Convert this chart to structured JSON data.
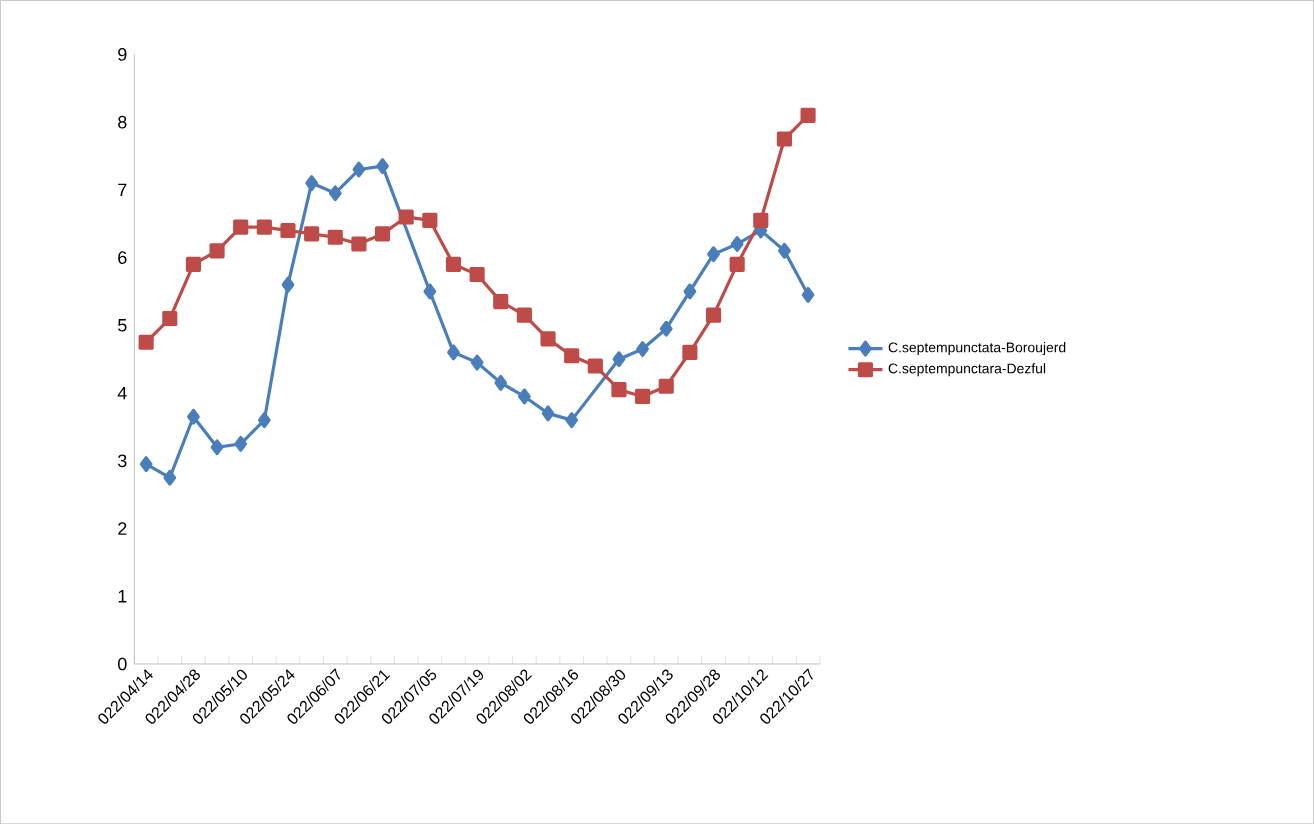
{
  "chart_data": {
    "type": "line",
    "categories": [
      "022/04/14",
      null,
      "022/04/28",
      null,
      "022/05/10",
      null,
      "022/05/24",
      null,
      "022/06/07",
      null,
      "022/06/21",
      null,
      "022/07/05",
      null,
      "022/07/19",
      null,
      "022/08/02",
      null,
      "022/08/16",
      null,
      "022/08/30",
      null,
      "022/09/13",
      null,
      "022/09/28",
      null,
      "022/10/12",
      null,
      "022/10/27"
    ],
    "series": [
      {
        "name": "C.septempunctata-Boroujerd",
        "color": "#4a7ebb",
        "marker": "diamond",
        "values": [
          2.95,
          2.75,
          3.65,
          3.2,
          3.25,
          3.6,
          5.6,
          7.1,
          6.95,
          7.3,
          7.35,
          null,
          5.5,
          4.6,
          4.45,
          4.15,
          3.95,
          3.7,
          3.6,
          null,
          4.5,
          4.65,
          4.95,
          5.5,
          6.05,
          6.2,
          6.4,
          6.1,
          5.45
        ]
      },
      {
        "name": "C.septempunctara-Dezful",
        "color": "#be4b48",
        "marker": "square",
        "values": [
          4.75,
          5.1,
          5.9,
          6.1,
          6.45,
          6.45,
          6.4,
          6.35,
          6.3,
          6.2,
          6.35,
          6.6,
          6.55,
          5.9,
          5.75,
          5.35,
          5.15,
          4.8,
          4.55,
          4.4,
          4.05,
          3.95,
          4.1,
          4.6,
          5.15,
          5.9,
          6.55,
          7.75,
          8.1
        ]
      }
    ],
    "ylim": [
      0,
      9
    ],
    "yticks": [
      0,
      1,
      2,
      3,
      4,
      5,
      6,
      7,
      8,
      9
    ],
    "grid": false,
    "legend": "right"
  }
}
